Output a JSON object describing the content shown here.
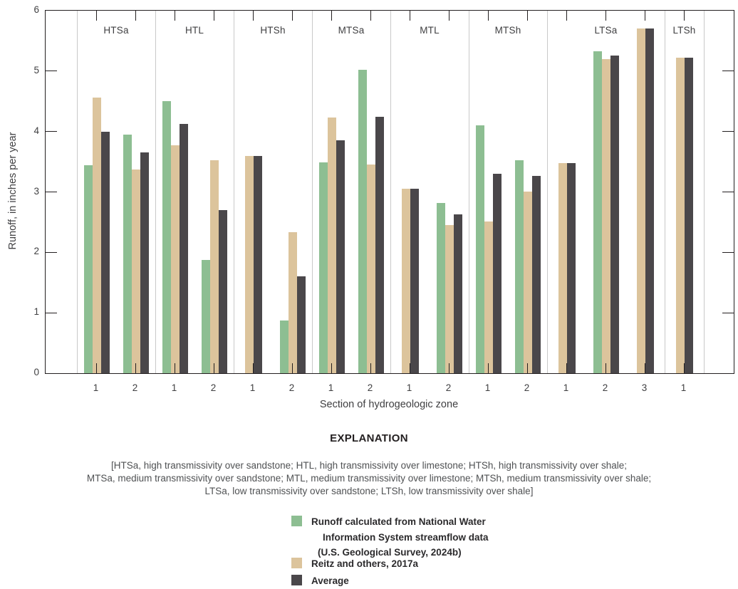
{
  "colors": {
    "nwis": "#8DBE92",
    "reitz": "#DCC49C",
    "average": "#4A474A",
    "grid": "#C9C9C9",
    "axis": "#231F20",
    "text": "#414042"
  },
  "chart_data": {
    "type": "bar",
    "xlabel": "Section of hydrogeologic zone",
    "ylabel": "Runoff, in inches per year",
    "ylim": [
      0,
      6
    ],
    "yticks": [
      0,
      1,
      2,
      3,
      4,
      5,
      6
    ],
    "grid": "vertical zone dividers only",
    "legend_position": "below chart under EXPLANATION heading",
    "series": [
      {
        "id": "nwis",
        "name": "Runoff calculated from National Water Information System streamflow data (U.S. Geological Survey, 2024b)"
      },
      {
        "id": "reitz",
        "name": "Reitz and others, 2017a"
      },
      {
        "id": "average",
        "name": "Average"
      }
    ],
    "zones": [
      {
        "label": "HTSa",
        "sections": [
          {
            "label": "1",
            "values": {
              "nwis": 3.44,
              "reitz": 4.56,
              "average": 4.0
            }
          },
          {
            "label": "2",
            "values": {
              "nwis": 3.95,
              "reitz": 3.37,
              "average": 3.66
            }
          }
        ]
      },
      {
        "label": "HTL",
        "sections": [
          {
            "label": "1",
            "values": {
              "nwis": 4.5,
              "reitz": 3.77,
              "average": 4.13
            }
          },
          {
            "label": "2",
            "values": {
              "nwis": 1.87,
              "reitz": 3.52,
              "average": 2.7
            }
          }
        ]
      },
      {
        "label": "HTSh",
        "sections": [
          {
            "label": "1",
            "values": {
              "nwis": null,
              "reitz": 3.59,
              "average": 3.59
            }
          },
          {
            "label": "2",
            "values": {
              "nwis": 0.87,
              "reitz": 2.33,
              "average": 1.6
            }
          }
        ]
      },
      {
        "label": "MTSa",
        "sections": [
          {
            "label": "1",
            "values": {
              "nwis": 3.49,
              "reitz": 4.23,
              "average": 3.86
            }
          },
          {
            "label": "2",
            "values": {
              "nwis": 5.02,
              "reitz": 3.46,
              "average": 4.24
            }
          }
        ]
      },
      {
        "label": "MTL",
        "sections": [
          {
            "label": "1",
            "values": {
              "nwis": null,
              "reitz": 3.05,
              "average": 3.05
            }
          },
          {
            "label": "2",
            "values": {
              "nwis": 2.82,
              "reitz": 2.45,
              "average": 2.63
            }
          }
        ]
      },
      {
        "label": "MTSh",
        "sections": [
          {
            "label": "1",
            "values": {
              "nwis": 4.1,
              "reitz": 2.51,
              "average": 3.3
            }
          },
          {
            "label": "2",
            "values": {
              "nwis": 3.52,
              "reitz": 3.01,
              "average": 3.26
            }
          }
        ]
      },
      {
        "label": "LTSa",
        "sections": [
          {
            "label": "1",
            "values": {
              "nwis": null,
              "reitz": 3.48,
              "average": 3.48
            }
          },
          {
            "label": "2",
            "values": {
              "nwis": 5.33,
              "reitz": 5.2,
              "average": 5.26
            }
          },
          {
            "label": "3",
            "values": {
              "nwis": null,
              "reitz": 5.7,
              "average": 5.7
            }
          }
        ]
      },
      {
        "label": "LTSh",
        "sections": [
          {
            "label": "1",
            "values": {
              "nwis": null,
              "reitz": 5.22,
              "average": 5.22
            }
          }
        ]
      }
    ]
  },
  "explanation": {
    "title": "EXPLANATION",
    "note_lines": [
      "[HTSa, high transmissivity over sandstone; HTL, high transmissivity over limestone; HTSh, high transmissivity over shale;",
      "MTSa, medium transmissivity over sandstone; MTL, medium transmissivity over limestone; MTSh, medium transmissivity over shale;",
      "LTSa, low transmissivity over sandstone; LTSh, low transmissivity over shale]"
    ],
    "legend": [
      {
        "series": "nwis",
        "lines": [
          "Runoff calculated from National Water",
          "Information System streamflow data",
          "(U.S. Geological Survey, 2024b)"
        ]
      },
      {
        "series": "reitz",
        "lines": [
          "Reitz and others, 2017a"
        ]
      },
      {
        "series": "average",
        "lines": [
          "Average"
        ]
      }
    ]
  }
}
